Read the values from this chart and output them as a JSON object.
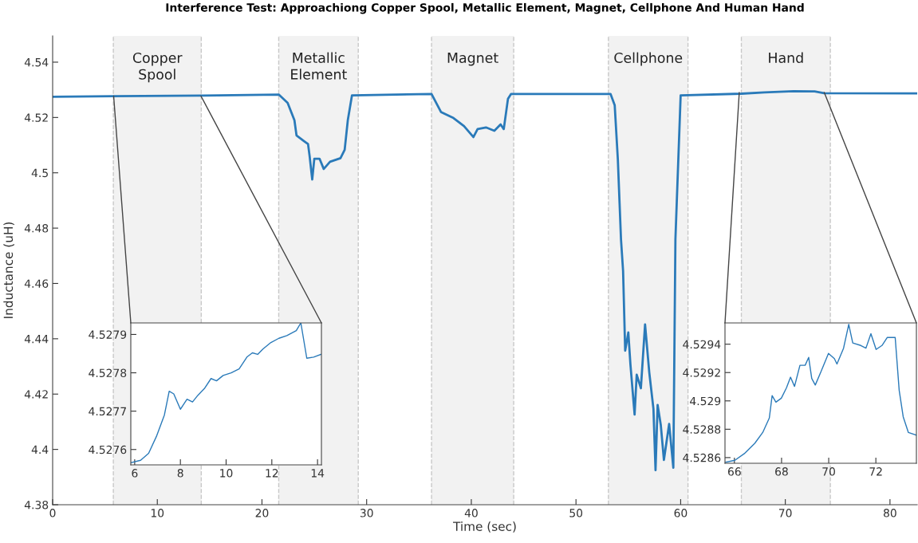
{
  "chart_data": [
    {
      "type": "line",
      "title": "Interference Test: Approachiong Copper Spool, Metallic Element, Magnet, Cellphone And Human Hand",
      "xlabel": "Time (sec)",
      "ylabel": "Inductance (uH)",
      "xlim": [
        0,
        82.6
      ],
      "ylim": [
        4.38,
        4.5495
      ],
      "xticks": [
        0,
        10,
        20,
        30,
        40,
        50,
        60,
        70,
        80
      ],
      "yticks": [
        4.38,
        4.4,
        4.42,
        4.44,
        4.46,
        4.48,
        4.5,
        4.52,
        4.54
      ],
      "grid": false,
      "legend": false,
      "marker": "none",
      "line_style": "solid",
      "series": [
        {
          "color": "#2a7ab9",
          "x": [
            0,
            5.8,
            14.2,
            21.6,
            22.45,
            23.1,
            23.3,
            24.0,
            24.4,
            24.55,
            24.8,
            25.0,
            25.5,
            25.9,
            26.5,
            27.5,
            27.9,
            28.2,
            28.6,
            36.2,
            37.1,
            38.3,
            39.3,
            40.2,
            40.6,
            41.4,
            42.2,
            42.8,
            43.1,
            43.5,
            43.8,
            53.3,
            53.7,
            54.0,
            54.3,
            54.5,
            54.7,
            55.0,
            55.2,
            55.6,
            55.8,
            56.2,
            56.6,
            57.0,
            57.4,
            57.6,
            57.8,
            58.1,
            58.4,
            58.7,
            58.9,
            59.3,
            59.5,
            60.0,
            65.8,
            68.0,
            70.8,
            72.8,
            73.7,
            82.6
          ],
          "values": [
            4.5275,
            4.5277,
            4.5279,
            4.5283,
            4.5253,
            4.519,
            4.5135,
            4.5115,
            4.5104,
            4.5061,
            4.4976,
            4.5051,
            4.5051,
            4.5014,
            4.504,
            4.5053,
            4.5083,
            4.519,
            4.528,
            4.5285,
            4.522,
            4.5198,
            4.5169,
            4.5129,
            4.5158,
            4.5164,
            4.5152,
            4.5175,
            4.5158,
            4.5267,
            4.5285,
            4.5285,
            4.5244,
            4.5048,
            4.476,
            4.4645,
            4.4357,
            4.4423,
            4.4308,
            4.4126,
            4.427,
            4.4221,
            4.4452,
            4.4279,
            4.4147,
            4.3925,
            4.4161,
            4.4089,
            4.3962,
            4.404,
            4.4092,
            4.3934,
            4.476,
            4.528,
            4.5286,
            4.5291,
            4.5295,
            4.5294,
            4.5288,
            4.5287
          ]
        }
      ],
      "bands": [
        {
          "axis": "x",
          "from": 5.8,
          "to": 14.2,
          "label": "Copper\nSpool",
          "color": "#f2f2f2"
        },
        {
          "axis": "x",
          "from": 21.6,
          "to": 29.2,
          "label": "Metallic\nElement",
          "color": "#f2f2f2"
        },
        {
          "axis": "x",
          "from": 36.2,
          "to": 44.05,
          "label": "Magnet",
          "color": "#f2f2f2"
        },
        {
          "axis": "x",
          "from": 53.1,
          "to": 60.7,
          "label": "Cellphone",
          "color": "#f2f2f2"
        },
        {
          "axis": "x",
          "from": 65.8,
          "to": 74.3,
          "label": "Hand",
          "color": "#f2f2f2"
        }
      ]
    },
    {
      "type": "line",
      "xlim": [
        5.83,
        14.17
      ],
      "ylim": [
        4.52756,
        4.52793
      ],
      "xticks": [
        6,
        8,
        10,
        12,
        14
      ],
      "yticks": [
        4.5276,
        4.5277,
        4.5278,
        4.5279
      ],
      "grid": false,
      "legend": false,
      "marker": "none",
      "line_style": "solid",
      "series": [
        {
          "color": "#2a7ab9",
          "x": [
            5.85,
            6.26,
            6.61,
            6.95,
            7.3,
            7.51,
            7.71,
            8.0,
            8.29,
            8.53,
            8.76,
            9.05,
            9.34,
            9.58,
            9.87,
            10.22,
            10.57,
            10.91,
            11.15,
            11.38,
            11.61,
            11.96,
            12.31,
            12.66,
            13.07,
            13.27,
            13.53,
            13.83,
            14.15
          ],
          "values": [
            4.527566,
            4.527572,
            4.52759,
            4.527634,
            4.52769,
            4.527752,
            4.527745,
            4.527705,
            4.527731,
            4.527724,
            4.527741,
            4.527759,
            4.527785,
            4.527779,
            4.527793,
            4.5278,
            4.52781,
            4.527841,
            4.527852,
            4.527848,
            4.527862,
            4.527879,
            4.52789,
            4.527897,
            4.52791,
            4.52793,
            4.527838,
            4.527841,
            4.527848
          ]
        }
      ]
    },
    {
      "type": "line",
      "xlim": [
        65.6,
        73.72
      ],
      "ylim": [
        4.52856,
        4.52955
      ],
      "xticks": [
        66,
        68,
        70,
        72
      ],
      "yticks": [
        4.5286,
        4.5288,
        4.529,
        4.5292,
        4.5294
      ],
      "grid": false,
      "legend": false,
      "marker": "none",
      "line_style": "solid",
      "series": [
        {
          "color": "#2a7ab9",
          "x": [
            65.63,
            66.02,
            66.42,
            66.87,
            67.2,
            67.48,
            67.6,
            67.76,
            67.99,
            68.21,
            68.38,
            68.55,
            68.78,
            69.0,
            69.15,
            69.28,
            69.43,
            69.67,
            69.99,
            70.24,
            70.35,
            70.63,
            70.85,
            71.02,
            71.36,
            71.58,
            71.79,
            72.01,
            72.26,
            72.48,
            72.82,
            72.99,
            73.16,
            73.38,
            73.72
          ],
          "values": [
            4.528568,
            4.528581,
            4.528628,
            4.528702,
            4.528777,
            4.528879,
            4.529037,
            4.528991,
            4.529019,
            4.529093,
            4.529167,
            4.529102,
            4.529251,
            4.529251,
            4.529307,
            4.529158,
            4.529112,
            4.529205,
            4.529335,
            4.529298,
            4.52926,
            4.529372,
            4.52954,
            4.529409,
            4.529391,
            4.529372,
            4.529474,
            4.529363,
            4.529391,
            4.529447,
            4.529447,
            4.529074,
            4.528888,
            4.528777,
            4.528758
          ]
        }
      ]
    }
  ]
}
